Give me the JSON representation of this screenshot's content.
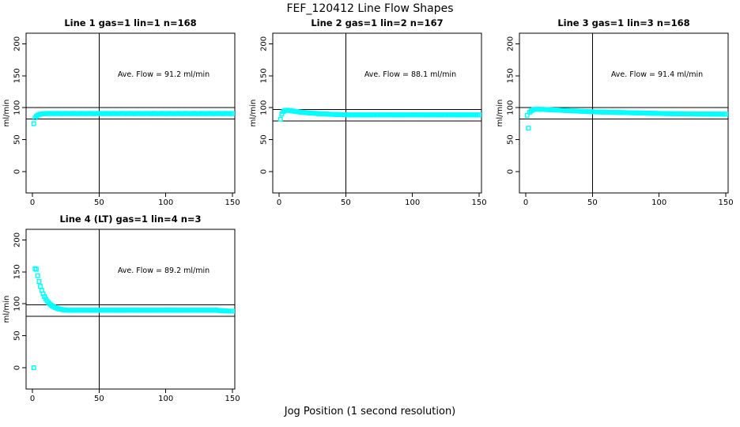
{
  "title": "FEF_120412  Line Flow Shapes",
  "xlabel": "Jog Position (1 second resolution)",
  "colors": {
    "marker": "#00FFFF",
    "axis": "#000000",
    "background": "#FFFFFF"
  },
  "marker_shape": "open-square",
  "chart_data": {
    "type": "scatter",
    "layout_hint": "2x3 grid, 4 panels used, common axes, box around each plot, grid off",
    "xticks": [
      0,
      50,
      100,
      150
    ],
    "yticks": [
      0,
      50,
      100,
      150,
      200
    ],
    "xlim": [
      -5,
      156
    ],
    "ylim": [
      -33,
      217
    ],
    "x_step_seconds": 1,
    "charts": [
      {
        "title": "Line 1 gas=1 lin=1 n=168",
        "ave_flow": 91.2,
        "ave_flow_label": "Ave. Flow =  91.2  ml/min",
        "ylabel": "ml/min",
        "n": 168,
        "vline_x": 50,
        "hlines": [
          100.3,
          82.1
        ],
        "x_start": 1,
        "y": [
          75,
          84,
          86.8,
          88.3,
          89.3,
          89.9,
          90.3,
          90.5,
          90.7,
          91,
          90.6,
          90.9,
          91.2,
          90.8,
          90.7,
          91,
          90.6,
          90.9,
          91.2,
          90.8,
          90.7,
          91,
          90.6,
          90.9,
          91.2,
          90.8,
          90.7,
          91,
          90.6,
          90.9,
          91.2,
          90.8,
          90.7,
          91,
          90.6,
          90.9,
          91.2,
          90.8,
          90.7,
          91,
          90.6,
          90.9,
          91.2,
          90.8,
          90.7,
          91,
          90.6,
          90.9,
          91.2,
          90.8,
          90.7,
          91,
          90.6,
          90.9,
          91.2,
          90.8,
          90.7,
          91,
          90.6,
          90.9,
          91.2,
          90.8,
          90.7,
          91,
          90.6,
          90.9,
          91.2,
          90.8,
          90.7,
          91,
          90.6,
          90.9,
          91.2,
          90.8,
          90.7,
          91,
          90.6,
          90.9,
          91.2,
          90.8,
          90.7,
          91,
          90.6,
          90.9,
          91.2,
          90.8,
          90.7,
          91,
          90.6,
          90.9,
          91.2,
          90.8,
          90.7,
          91,
          90.6,
          90.9,
          91.2,
          90.8,
          90.7,
          91,
          90.6,
          90.9,
          91.2,
          90.8,
          90.7,
          91,
          90.6,
          90.9,
          91.2,
          90.8,
          90.7,
          91,
          90.6,
          90.9,
          91.2,
          90.8,
          90.7,
          91,
          90.6,
          90.9,
          91.2,
          90.8,
          90.7,
          91,
          90.6,
          90.9,
          91.2,
          90.8,
          90.7,
          91,
          90.6,
          90.9,
          91.2,
          90.8,
          90.7,
          91,
          90.6,
          90.9,
          91.2,
          90.8,
          90.7,
          91,
          90.6,
          90.9,
          91.2,
          90.8,
          90.7,
          91,
          90.6,
          90.9
        ]
      },
      {
        "title": "Line 2 gas=1 lin=2 n=167",
        "ave_flow": 88.1,
        "ave_flow_label": "Ave. Flow =  88.1  ml/min",
        "ylabel": "ml/min",
        "n": 167,
        "vline_x": 50,
        "hlines": [
          96.9,
          79.3
        ],
        "x_start": 1,
        "y": [
          82,
          90,
          93.5,
          95,
          95.8,
          96,
          95.8,
          95.5,
          95.2,
          94.9,
          94.6,
          94.3,
          94,
          93.7,
          93.4,
          93.1,
          92.9,
          92.7,
          92.5,
          92.3,
          92.1,
          91.9,
          91.7,
          91.5,
          91.4,
          91.2,
          91.1,
          90.9,
          90.8,
          90.6,
          90.5,
          90.4,
          90.3,
          90.2,
          90.1,
          90,
          89.9,
          89.8,
          89.7,
          89.6,
          89.5,
          89.5,
          89.4,
          89.3,
          89.3,
          89.2,
          89.1,
          89.1,
          89,
          89,
          88.8,
          88.6,
          88.9,
          88.7,
          88.5,
          88.8,
          88.8,
          88.6,
          88.9,
          88.7,
          88.5,
          88.8,
          88.8,
          88.6,
          88.9,
          88.7,
          88.5,
          88.8,
          88.8,
          88.6,
          88.9,
          88.7,
          88.5,
          88.8,
          88.8,
          88.6,
          88.9,
          88.7,
          88.5,
          88.8,
          88.8,
          88.6,
          88.9,
          88.7,
          88.5,
          88.8,
          88.8,
          88.6,
          88.9,
          88.7,
          88.5,
          88.8,
          88.8,
          88.6,
          88.9,
          88.7,
          88.5,
          88.8,
          88.8,
          88.6,
          88.9,
          88.7,
          88.5,
          88.8,
          88.8,
          88.6,
          88.9,
          88.7,
          88.5,
          88.8,
          88.8,
          88.6,
          88.9,
          88.7,
          88.5,
          88.8,
          88.8,
          88.6,
          88.9,
          88.7,
          88.5,
          88.8,
          88.8,
          88.6,
          88.9,
          88.7,
          88.5,
          88.8,
          88.8,
          88.6,
          88.9,
          88.7,
          88.5,
          88.8,
          88.8,
          88.6,
          88.9,
          88.7,
          88.5,
          88.8,
          88.8,
          88.6,
          88.9,
          88.7,
          88.5,
          88.8,
          88.8,
          88.6,
          88.9,
          88.7
        ]
      },
      {
        "title": "Line 3 gas=1 lin=3 n=168",
        "ave_flow": 91.4,
        "ave_flow_label": "Ave. Flow =  91.4  ml/min",
        "ylabel": "ml/min",
        "n": 168,
        "vline_x": 50,
        "hlines": [
          100.5,
          82.3
        ],
        "x_start": 1,
        "y": [
          88,
          68,
          93,
          95,
          96.3,
          97,
          97.4,
          97.6,
          97.7,
          97.6,
          97.5,
          97.4,
          97.3,
          97.2,
          97.1,
          97,
          96.9,
          96.8,
          96.7,
          96.6,
          96.5,
          96.4,
          96.3,
          96.2,
          96.1,
          96,
          95.9,
          95.8,
          95.7,
          95.6,
          95.5,
          95.4,
          95.3,
          95.2,
          95.1,
          95,
          94.9,
          94.8,
          94.7,
          94.6,
          94.5,
          94.4,
          94.3,
          94.2,
          94.1,
          94,
          93.9,
          93.8,
          93.7,
          93.6,
          93.5,
          93.4,
          93.4,
          93.3,
          93.3,
          93.2,
          93.2,
          93.1,
          93.1,
          93,
          93,
          92.9,
          92.9,
          92.8,
          92.8,
          92.7,
          92.7,
          92.6,
          92.6,
          92.5,
          92.5,
          92.4,
          92.4,
          92.3,
          92.3,
          92.2,
          92.2,
          92.1,
          92.1,
          92,
          92,
          91.9,
          91.9,
          91.8,
          91.8,
          91.7,
          91.7,
          91.6,
          91.6,
          91.5,
          91.5,
          91.4,
          91.4,
          91.3,
          91.3,
          91.2,
          91.2,
          91.1,
          91.1,
          91,
          91,
          90.9,
          90.9,
          90.8,
          90.8,
          90.8,
          90.7,
          90.7,
          90.7,
          90.6,
          90.6,
          90.6,
          90.5,
          90.5,
          90.5,
          90.5,
          90.4,
          90.4,
          90.4,
          90.4,
          90.4,
          90.3,
          90.3,
          90.3,
          90.3,
          90.3,
          90.2,
          90.2,
          90.2,
          90.2,
          90.2,
          90.2,
          90.1,
          90.1,
          90.1,
          90.1,
          90.1,
          90.1,
          90,
          90,
          90,
          90,
          90,
          90,
          89.9,
          89.9,
          89.9,
          89.9,
          89.9,
          89.9
        ]
      },
      {
        "title": "Line 4 (LT) gas=1 lin=4 n=3",
        "ave_flow": 89.2,
        "ave_flow_label": "Ave. Flow =  89.2  ml/min",
        "ylabel": "ml/min",
        "n": 3,
        "vline_x": 50,
        "hlines": [
          98.1,
          80.3
        ],
        "x_start": 1,
        "y": [
          0,
          155,
          154,
          144,
          134.9,
          127.3,
          120.9,
          115.6,
          111.2,
          107.5,
          104.4,
          101.9,
          99.7,
          97.9,
          96.5,
          95.2,
          94.2,
          93.3,
          92.6,
          92,
          91.5,
          91.1,
          90.7,
          90.4,
          90.2,
          90,
          89.8,
          90.1,
          89.9,
          90.2,
          89.8,
          90,
          89.8,
          90.1,
          89.9,
          90.2,
          89.8,
          90,
          89.8,
          90.1,
          89.9,
          90.2,
          89.8,
          90,
          89.8,
          90.1,
          89.9,
          90.2,
          89.8,
          90,
          89.8,
          90.1,
          89.9,
          90.2,
          89.8,
          90,
          89.8,
          90.1,
          89.9,
          90.2,
          89.8,
          90,
          89.8,
          90.1,
          89.9,
          90.2,
          89.8,
          90,
          89.8,
          90.1,
          89.9,
          90.2,
          89.8,
          90,
          89.8,
          90.1,
          89.9,
          90.2,
          89.8,
          90,
          89.8,
          90.1,
          89.9,
          90.2,
          89.8,
          90,
          89.8,
          90.1,
          89.9,
          90.2,
          89.8,
          90,
          89.8,
          90.1,
          89.9,
          90.2,
          89.8,
          90,
          89.8,
          90.1,
          89.9,
          90.2,
          89.8,
          90,
          89.8,
          90.1,
          89.9,
          90.2,
          89.8,
          90,
          89.8,
          90.1,
          89.9,
          90.2,
          89.8,
          90,
          89.8,
          90.1,
          89.9,
          90.2,
          89.8,
          90,
          89.8,
          90.1,
          89.9,
          90.2,
          89.8,
          90,
          89.8,
          90.1,
          89.9,
          90.2,
          89.8,
          90,
          89.8,
          90.1,
          89.9,
          90.2,
          89.6,
          89.4,
          89.3,
          89.2,
          89,
          88.9,
          88.8,
          88.7,
          88.6,
          88.6,
          88.5,
          88.5
        ]
      }
    ]
  }
}
